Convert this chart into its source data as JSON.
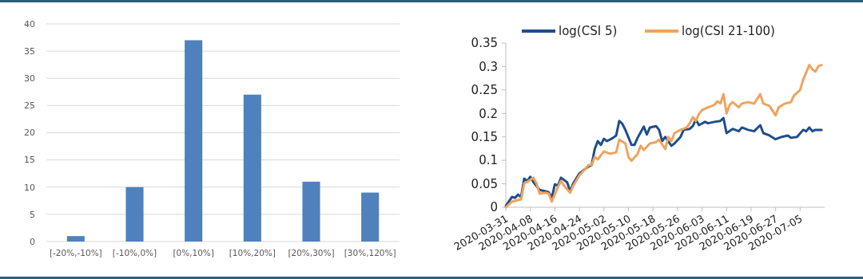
{
  "chart_data": [
    {
      "type": "bar",
      "categories": [
        "[-20%,-10%]",
        "[-10%,0%]",
        "[0%,10%]",
        "[10%,20%]",
        "[20%,30%]",
        "[30%,120%]"
      ],
      "values": [
        1,
        10,
        37,
        27,
        11,
        9
      ],
      "color": "#4f81bd",
      "ylim": [
        0,
        40
      ],
      "yticks": [
        0,
        5,
        10,
        15,
        20,
        25,
        30,
        35,
        40
      ],
      "grid": "y"
    },
    {
      "type": "line",
      "xlim": [
        "2020-03-31",
        "2020-07-13"
      ],
      "xticks": [
        {
          "value": "2020-03-31",
          "label": "2020-03-31"
        },
        {
          "value": "2020-04-08",
          "label": "2020-04-08"
        },
        {
          "value": "2020-04-16",
          "label": "2020-04-16"
        },
        {
          "value": "2020-04-24",
          "label": "2020-04-24"
        },
        {
          "value": "2020-05-02",
          "label": "2020-05-02"
        },
        {
          "value": "2020-05-10",
          "label": "2020-05-10"
        },
        {
          "value": "2020-05-18",
          "label": "2020-05-18"
        },
        {
          "value": "2020-05-26",
          "label": "2020-05-26"
        },
        {
          "value": "2020-06-03",
          "label": "2020-06-03"
        },
        {
          "value": "2020-06-11",
          "label": "2020-06-11"
        },
        {
          "value": "2020-06-19",
          "label": "2020-06-19"
        },
        {
          "value": "2020-06-27",
          "label": "2020-06-27"
        },
        {
          "value": "2020-07-05",
          "label": "2020-07-05"
        }
      ],
      "ylim": [
        0,
        0.35
      ],
      "yticks": [
        0,
        0.05,
        0.1,
        0.15,
        0.2,
        0.25,
        0.3,
        0.35
      ],
      "legend": "top",
      "grid": false,
      "series": [
        {
          "name": "log(CSI 5)",
          "color": "#1f4e8c",
          "x": [
            "2020-03-31",
            "2020-04-02",
            "2020-04-03",
            "2020-04-04",
            "2020-04-05",
            "2020-04-06",
            "2020-04-07",
            "2020-04-08",
            "2020-04-09",
            "2020-04-11",
            "2020-04-13",
            "2020-04-14",
            "2020-04-15",
            "2020-04-16",
            "2020-04-17",
            "2020-04-18",
            "2020-04-20",
            "2020-04-21",
            "2020-04-22",
            "2020-04-24",
            "2020-04-25",
            "2020-04-27",
            "2020-04-28",
            "2020-04-29",
            "2020-04-30",
            "2020-05-01",
            "2020-05-02",
            "2020-05-03",
            "2020-05-05",
            "2020-05-06",
            "2020-05-07",
            "2020-05-08",
            "2020-05-09",
            "2020-05-11",
            "2020-05-12",
            "2020-05-13",
            "2020-05-15",
            "2020-05-16",
            "2020-05-17",
            "2020-05-19",
            "2020-05-20",
            "2020-05-21",
            "2020-05-22",
            "2020-05-24",
            "2020-05-25",
            "2020-05-27",
            "2020-05-28",
            "2020-05-30",
            "2020-05-31",
            "2020-06-01",
            "2020-06-02",
            "2020-06-04",
            "2020-06-05",
            "2020-06-07",
            "2020-06-09",
            "2020-06-10",
            "2020-06-11",
            "2020-06-13",
            "2020-06-15",
            "2020-06-16",
            "2020-06-18",
            "2020-06-20",
            "2020-06-22",
            "2020-06-23",
            "2020-06-25",
            "2020-06-27",
            "2020-06-29",
            "2020-07-01",
            "2020-07-02",
            "2020-07-04",
            "2020-07-06",
            "2020-07-07",
            "2020-07-08",
            "2020-07-09",
            "2020-07-10",
            "2020-07-12"
          ],
          "values": [
            0.003,
            0.022,
            0.02,
            0.027,
            0.022,
            0.061,
            0.056,
            0.065,
            0.054,
            0.037,
            0.034,
            0.032,
            0.02,
            0.049,
            0.046,
            0.063,
            0.053,
            0.034,
            0.051,
            0.072,
            0.077,
            0.087,
            0.09,
            0.124,
            0.141,
            0.133,
            0.146,
            0.141,
            0.148,
            0.153,
            0.184,
            0.178,
            0.165,
            0.133,
            0.133,
            0.148,
            0.172,
            0.155,
            0.17,
            0.173,
            0.165,
            0.141,
            0.15,
            0.131,
            0.136,
            0.15,
            0.165,
            0.167,
            0.173,
            0.187,
            0.175,
            0.182,
            0.179,
            0.182,
            0.184,
            0.19,
            0.158,
            0.167,
            0.162,
            0.17,
            0.165,
            0.162,
            0.175,
            0.158,
            0.153,
            0.145,
            0.15,
            0.153,
            0.148,
            0.15,
            0.165,
            0.162,
            0.17,
            0.162,
            0.165,
            0.165
          ]
        },
        {
          "name": "log(CSI 21-100)",
          "color": "#f0a35e",
          "x": [
            "2020-03-31",
            "2020-04-02",
            "2020-04-05",
            "2020-04-06",
            "2020-04-07",
            "2020-04-09",
            "2020-04-10",
            "2020-04-11",
            "2020-04-13",
            "2020-04-14",
            "2020-04-15",
            "2020-04-17",
            "2020-04-18",
            "2020-04-19",
            "2020-04-21",
            "2020-04-22",
            "2020-04-24",
            "2020-04-26",
            "2020-04-27",
            "2020-04-28",
            "2020-04-29",
            "2020-04-30",
            "2020-05-02",
            "2020-05-04",
            "2020-05-06",
            "2020-05-07",
            "2020-05-09",
            "2020-05-10",
            "2020-05-11",
            "2020-05-13",
            "2020-05-14",
            "2020-05-15",
            "2020-05-17",
            "2020-05-19",
            "2020-05-20",
            "2020-05-22",
            "2020-05-23",
            "2020-05-24",
            "2020-05-25",
            "2020-05-27",
            "2020-05-29",
            "2020-05-30",
            "2020-05-31",
            "2020-06-01",
            "2020-06-02",
            "2020-06-03",
            "2020-06-05",
            "2020-06-07",
            "2020-06-08",
            "2020-06-09",
            "2020-06-10",
            "2020-06-11",
            "2020-06-12",
            "2020-06-13",
            "2020-06-15",
            "2020-06-16",
            "2020-06-18",
            "2020-06-20",
            "2020-06-22",
            "2020-06-23",
            "2020-06-25",
            "2020-06-27",
            "2020-06-28",
            "2020-06-30",
            "2020-07-02",
            "2020-07-03",
            "2020-07-05",
            "2020-07-06",
            "2020-07-08",
            "2020-07-09",
            "2020-07-10",
            "2020-07-11",
            "2020-07-12"
          ],
          "values": [
            0,
            0.012,
            0.017,
            0.051,
            0.054,
            0.063,
            0.051,
            0.029,
            0.031,
            0.029,
            0.012,
            0.043,
            0.056,
            0.046,
            0.031,
            0.046,
            0.068,
            0.082,
            0.09,
            0.09,
            0.107,
            0.102,
            0.119,
            0.114,
            0.117,
            0.144,
            0.136,
            0.107,
            0.099,
            0.114,
            0.131,
            0.122,
            0.136,
            0.139,
            0.144,
            0.124,
            0.15,
            0.141,
            0.158,
            0.165,
            0.17,
            0.179,
            0.192,
            0.184,
            0.199,
            0.207,
            0.213,
            0.218,
            0.226,
            0.221,
            0.241,
            0.2,
            0.218,
            0.224,
            0.213,
            0.221,
            0.224,
            0.221,
            0.241,
            0.221,
            0.216,
            0.196,
            0.213,
            0.221,
            0.224,
            0.238,
            0.25,
            0.272,
            0.303,
            0.294,
            0.289,
            0.301,
            0.303
          ]
        }
      ]
    }
  ]
}
